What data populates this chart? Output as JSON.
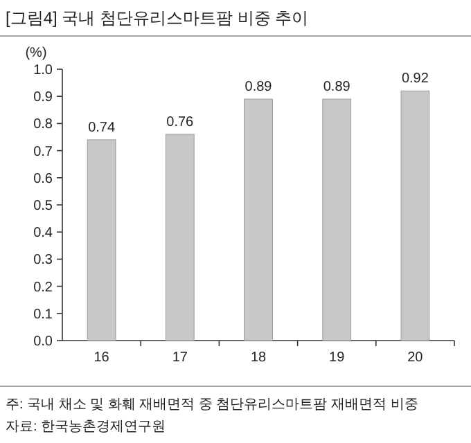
{
  "chart_data": {
    "type": "bar",
    "title": "[그림4]  국내 첨단유리스마트팜 비중 추이",
    "ylabel": "(%)",
    "categories": [
      "16",
      "17",
      "18",
      "19",
      "20"
    ],
    "values": [
      0.74,
      0.76,
      0.89,
      0.89,
      0.92
    ],
    "color": "#c8c8c8",
    "data_labels": true,
    "ylim": [
      0,
      1
    ],
    "yticks": [
      {
        "value": 0,
        "label": "0.0"
      },
      {
        "value": 0.1,
        "label": "0.1"
      },
      {
        "value": 0.2,
        "label": "0.2"
      },
      {
        "value": 0.3,
        "label": "0.3"
      },
      {
        "value": 0.4,
        "label": "0.4"
      },
      {
        "value": 0.5,
        "label": "0.5"
      },
      {
        "value": 0.6,
        "label": "0.6"
      },
      {
        "value": 0.7,
        "label": "0.7"
      },
      {
        "value": 0.8,
        "label": "0.8"
      },
      {
        "value": 0.9,
        "label": "0.9"
      },
      {
        "value": 1,
        "label": "1.0"
      }
    ],
    "annotations": [
      "주: 국내 채소 및 화훼 재배면적 중 첨단유리스마트팜 재배면적 비중",
      "자료: 한국농촌경제연구원"
    ]
  }
}
